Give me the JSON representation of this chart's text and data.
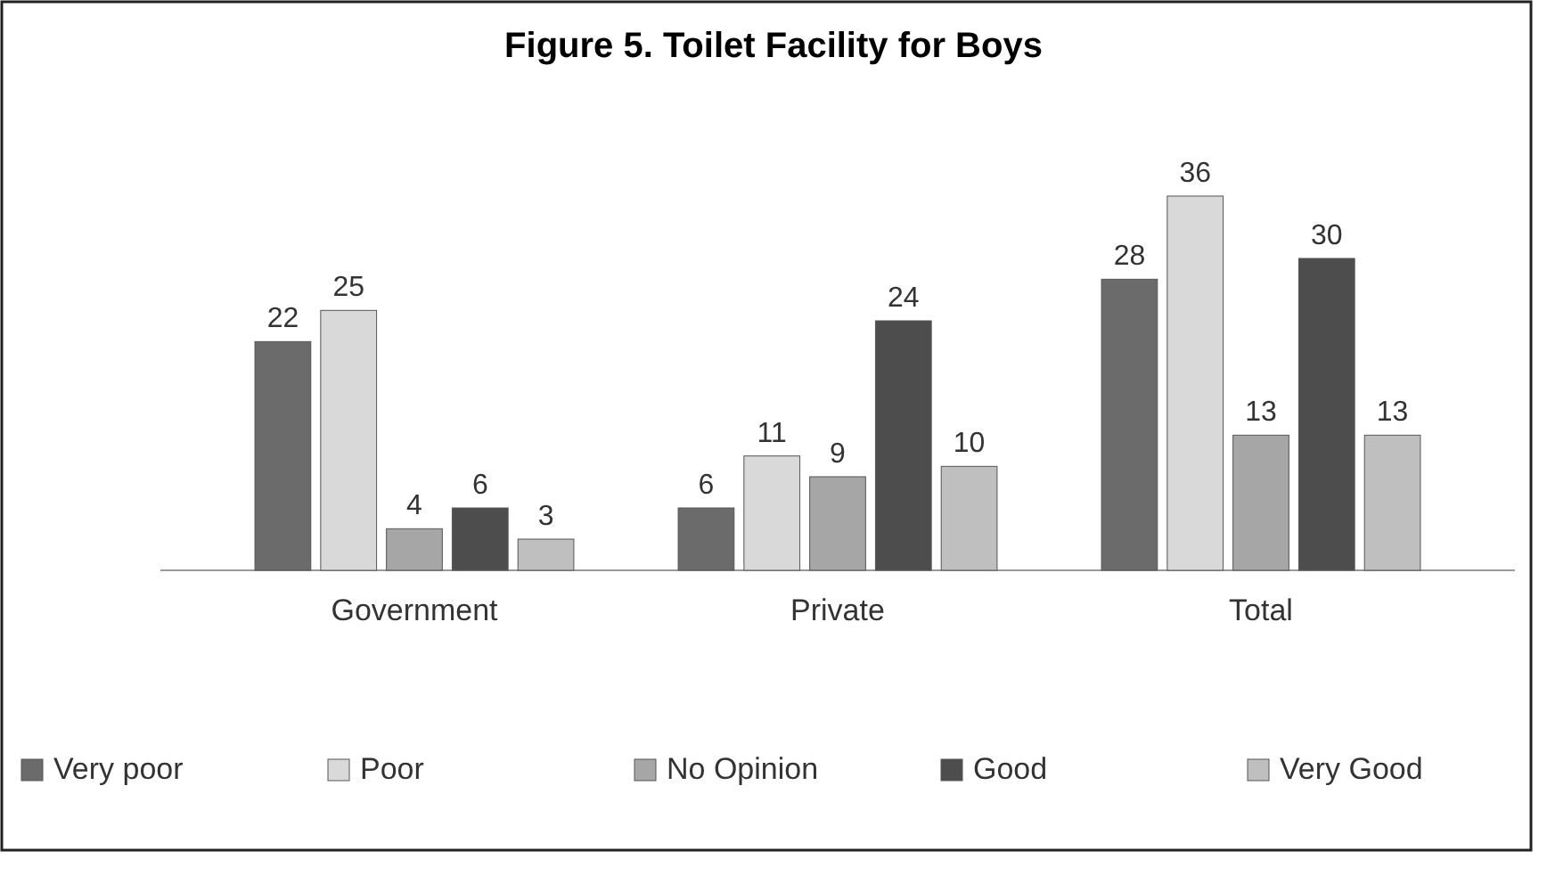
{
  "chart_data": {
    "type": "bar",
    "title": "Figure 5. Toilet Facility for Boys",
    "categories": [
      "Government",
      "Private",
      "Total"
    ],
    "series": [
      {
        "name": "Very poor",
        "color": "#6b6b6b",
        "values": [
          22,
          6,
          28
        ]
      },
      {
        "name": "Poor",
        "color": "#d9d9d9",
        "values": [
          25,
          11,
          36
        ]
      },
      {
        "name": "No Opinion",
        "color": "#a6a6a6",
        "values": [
          4,
          9,
          13
        ]
      },
      {
        "name": "Good",
        "color": "#4d4d4d",
        "values": [
          6,
          24,
          30
        ]
      },
      {
        "name": "Very Good",
        "color": "#bfbfbf",
        "values": [
          3,
          10,
          13
        ]
      }
    ],
    "data_labels": true,
    "legend": "bottom"
  }
}
